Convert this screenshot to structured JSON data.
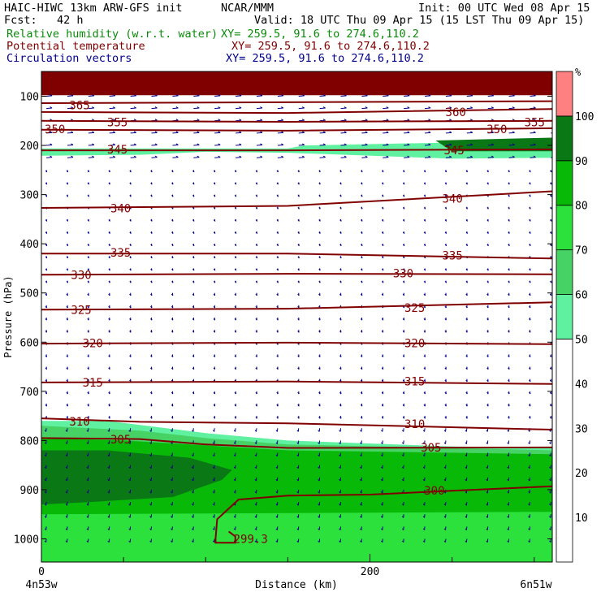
{
  "header": {
    "line1_left": "HAIC-HIWC 13km ARW-GFS init",
    "line1_mid": "NCAR/MMM",
    "line1_right": "Init: 00 UTC Wed 08 Apr 15",
    "line2_left": "Fcst:   42 h",
    "line2_right": "Valid: 18 UTC Thu 09 Apr 15 (15 LST Thu 09 Apr 15)",
    "field1_name": "Relative humidity (w.r.t. water)",
    "field1_xy": "XY= 259.5, 91.6 to 274.6,110.2",
    "field2_name": "Potential temperature",
    "field2_xy": "XY= 259.5, 91.6 to 274.6,110.2",
    "field3_name": "Circulation vectors",
    "field3_xy": "XY= 259.5, 91.6 to 274.6,110.2"
  },
  "colors": {
    "rh_field": "#0a8a0a",
    "theta_field": "#800000",
    "vector_field": "#00008b"
  },
  "chart_data": {
    "type": "heatmap",
    "description_of_fields": [
      "relative humidity shading",
      "potential temperature contours",
      "circulation vectors"
    ],
    "xlabel": "Distance (km)",
    "ylabel": "Pressure (hPa)",
    "x_ticks": [
      0,
      200
    ],
    "x_tick_labels": [
      "0",
      "200"
    ],
    "xlim": [
      0,
      312
    ],
    "y_ticks": [
      100,
      200,
      300,
      400,
      500,
      600,
      700,
      800,
      900,
      1000
    ],
    "y_tick_labels": [
      "100",
      "200",
      "300",
      "400",
      "500",
      "600",
      "700",
      "800",
      "900",
      "1000"
    ],
    "ylim": [
      1050,
      50
    ],
    "x_end_labels": [
      "4n53w",
      "6n51w"
    ],
    "colorbar": {
      "unit": "%",
      "labels": [
        "10",
        "20",
        "30",
        "40",
        "50",
        "60",
        "70",
        "80",
        "90",
        "100"
      ],
      "bins": [
        {
          "lo": 0,
          "hi": 50,
          "color": "#ffffff"
        },
        {
          "lo": 50,
          "hi": 60,
          "color": "#5ff0a0"
        },
        {
          "lo": 60,
          "hi": 70,
          "color": "#46d264"
        },
        {
          "lo": 70,
          "hi": 80,
          "color": "#2ce13c"
        },
        {
          "lo": 80,
          "hi": 90,
          "color": "#08b908"
        },
        {
          "lo": 90,
          "hi": 100,
          "color": "#0a7814"
        },
        {
          "lo": 100,
          "hi": 110,
          "color": "#ff8080"
        }
      ]
    },
    "rh_regions": [
      {
        "color": "#800000",
        "polygon": [
          [
            0,
            50
          ],
          [
            312,
            50
          ],
          [
            312,
            98
          ],
          [
            0,
            98
          ]
        ]
      },
      {
        "color": "#5ff0a0",
        "polygon": [
          [
            0,
            206
          ],
          [
            150,
            206
          ],
          [
            160,
            200
          ],
          [
            312,
            190
          ],
          [
            312,
            225
          ],
          [
            250,
            227
          ],
          [
            150,
            215
          ],
          [
            100,
            213
          ],
          [
            60,
            219
          ],
          [
            0,
            221
          ]
        ]
      },
      {
        "color": "#0a7814",
        "polygon": [
          [
            240,
            190
          ],
          [
            312,
            184
          ],
          [
            312,
            212
          ],
          [
            250,
            212
          ]
        ]
      },
      {
        "color": "#5ff0a0",
        "polygon": [
          [
            0,
            760
          ],
          [
            40,
            760
          ],
          [
            100,
            785
          ],
          [
            150,
            800
          ],
          [
            250,
            812
          ],
          [
            312,
            815
          ],
          [
            312,
            1050
          ],
          [
            0,
            1050
          ]
        ]
      },
      {
        "color": "#46d264",
        "polygon": [
          [
            0,
            770
          ],
          [
            60,
            780
          ],
          [
            100,
            795
          ],
          [
            150,
            808
          ],
          [
            312,
            820
          ],
          [
            312,
            1050
          ],
          [
            0,
            1050
          ]
        ]
      },
      {
        "color": "#08b908",
        "polygon": [
          [
            0,
            795
          ],
          [
            50,
            800
          ],
          [
            100,
            810
          ],
          [
            150,
            820
          ],
          [
            312,
            828
          ],
          [
            312,
            1050
          ],
          [
            0,
            1050
          ]
        ]
      },
      {
        "color": "#0a7814",
        "polygon": [
          [
            0,
            820
          ],
          [
            40,
            820
          ],
          [
            90,
            835
          ],
          [
            116,
            860
          ],
          [
            110,
            880
          ],
          [
            80,
            915
          ],
          [
            30,
            925
          ],
          [
            0,
            930
          ]
        ]
      },
      {
        "color": "#2ce13c",
        "polygon": [
          [
            0,
            950
          ],
          [
            312,
            945
          ],
          [
            312,
            1050
          ],
          [
            0,
            1050
          ]
        ]
      }
    ],
    "theta_contours": [
      {
        "label": "365",
        "label_x": 17,
        "label_y": 118,
        "points": [
          [
            0,
            114
          ],
          [
            312,
            110
          ]
        ]
      },
      {
        "label": "360",
        "label_x": 246,
        "label_y": 132,
        "points": [
          [
            0,
            132
          ],
          [
            150,
            134
          ],
          [
            312,
            126
          ]
        ]
      },
      {
        "label": "355",
        "label_x": 40,
        "label_y": 153,
        "points": [
          [
            0,
            150
          ],
          [
            150,
            152
          ],
          [
            312,
            150
          ]
        ]
      },
      {
        "label": "355",
        "label_x": 294,
        "label_y": 153,
        "points": []
      },
      {
        "label": "350",
        "label_x": 2,
        "label_y": 167,
        "points": [
          [
            0,
            168
          ],
          [
            150,
            170
          ],
          [
            312,
            165
          ]
        ]
      },
      {
        "label": "350",
        "label_x": 271,
        "label_y": 167,
        "points": []
      },
      {
        "label": "345",
        "label_x": 40,
        "label_y": 208,
        "points": [
          [
            0,
            210
          ],
          [
            150,
            210
          ],
          [
            312,
            208
          ]
        ]
      },
      {
        "label": "345",
        "label_x": 245,
        "label_y": 210,
        "points": []
      },
      {
        "label": "340",
        "label_x": 42,
        "label_y": 328,
        "points": [
          [
            0,
            327
          ],
          [
            150,
            323
          ],
          [
            312,
            293
          ]
        ]
      },
      {
        "label": "340",
        "label_x": 244,
        "label_y": 308,
        "points": []
      },
      {
        "label": "335",
        "label_x": 42,
        "label_y": 418,
        "points": [
          [
            0,
            420
          ],
          [
            150,
            420
          ],
          [
            312,
            430
          ]
        ]
      },
      {
        "label": "335",
        "label_x": 244,
        "label_y": 424,
        "points": []
      },
      {
        "label": "330",
        "label_x": 18,
        "label_y": 463,
        "points": [
          [
            0,
            463
          ],
          [
            150,
            461
          ],
          [
            312,
            462
          ]
        ]
      },
      {
        "label": "330",
        "label_x": 214,
        "label_y": 460,
        "points": []
      },
      {
        "label": "325",
        "label_x": 18,
        "label_y": 534,
        "points": [
          [
            0,
            534
          ],
          [
            150,
            532
          ],
          [
            312,
            519
          ]
        ]
      },
      {
        "label": "325",
        "label_x": 221,
        "label_y": 530,
        "points": []
      },
      {
        "label": "320",
        "label_x": 25,
        "label_y": 602,
        "points": [
          [
            0,
            603
          ],
          [
            150,
            601
          ],
          [
            312,
            604
          ]
        ]
      },
      {
        "label": "320",
        "label_x": 221,
        "label_y": 602,
        "points": []
      },
      {
        "label": "315",
        "label_x": 25,
        "label_y": 682,
        "points": [
          [
            0,
            682
          ],
          [
            150,
            680
          ],
          [
            312,
            685
          ]
        ]
      },
      {
        "label": "315",
        "label_x": 221,
        "label_y": 680,
        "points": []
      },
      {
        "label": "310",
        "label_x": 17,
        "label_y": 761,
        "points": [
          [
            0,
            755
          ],
          [
            60,
            762
          ],
          [
            150,
            765
          ],
          [
            312,
            778
          ]
        ]
      },
      {
        "label": "310",
        "label_x": 221,
        "label_y": 766,
        "points": []
      },
      {
        "label": "305",
        "label_x": 42,
        "label_y": 798,
        "points": [
          [
            0,
            795
          ],
          [
            60,
            797
          ],
          [
            100,
            808
          ],
          [
            150,
            815
          ],
          [
            312,
            814
          ]
        ]
      },
      {
        "label": "305",
        "label_x": 231,
        "label_y": 814,
        "points": []
      },
      {
        "label": "300",
        "label_x": 233,
        "label_y": 902,
        "points": [
          [
            106,
            1000
          ],
          [
            107,
            960
          ],
          [
            120,
            920
          ],
          [
            150,
            912
          ],
          [
            200,
            910
          ],
          [
            250,
            902
          ],
          [
            312,
            893
          ]
        ]
      },
      {
        "label": "299.3",
        "label_x": 117,
        "label_y": 1000,
        "points": [
          [
            106,
            1000
          ],
          [
            106,
            1008
          ],
          [
            118,
            1008
          ],
          [
            118,
            995
          ],
          [
            114,
            985
          ]
        ]
      }
    ]
  }
}
